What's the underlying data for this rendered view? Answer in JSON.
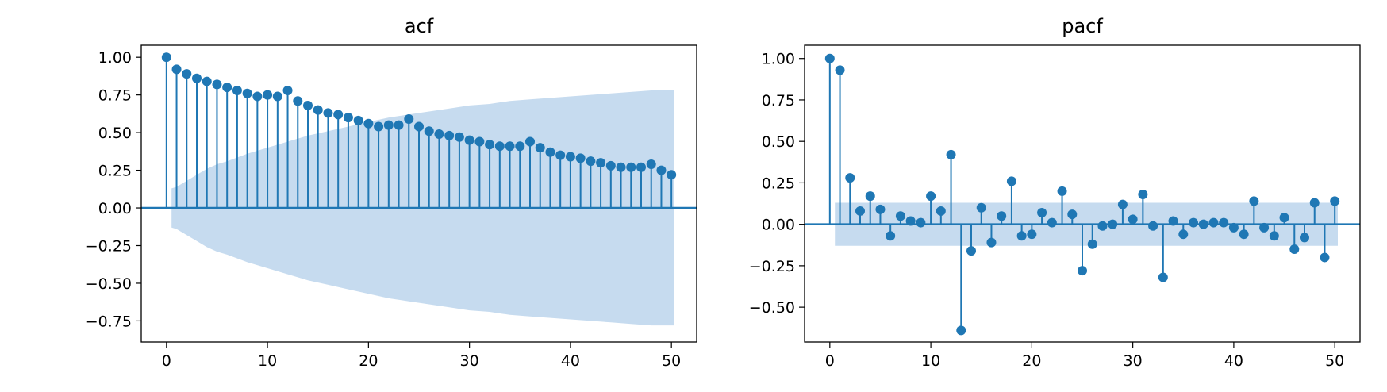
{
  "chart_data": [
    {
      "type": "stem",
      "title": "acf",
      "xlim": [
        -2.5,
        52.5
      ],
      "ylim": [
        -0.89,
        1.08
      ],
      "xticks": [
        0,
        10,
        20,
        30,
        40,
        50
      ],
      "yticks": [
        1.0,
        0.75,
        0.5,
        0.25,
        0.0,
        -0.25,
        -0.5,
        -0.75
      ],
      "ytick_labels": [
        "1.00",
        "0.75",
        "0.50",
        "0.25",
        "0.00",
        "−0.25",
        "−0.50",
        "−0.75"
      ],
      "lags": [
        0,
        1,
        2,
        3,
        4,
        5,
        6,
        7,
        8,
        9,
        10,
        11,
        12,
        13,
        14,
        15,
        16,
        17,
        18,
        19,
        20,
        21,
        22,
        23,
        24,
        25,
        26,
        27,
        28,
        29,
        30,
        31,
        32,
        33,
        34,
        35,
        36,
        37,
        38,
        39,
        40,
        41,
        42,
        43,
        44,
        45,
        46,
        47,
        48,
        49,
        50
      ],
      "values": [
        1.0,
        0.92,
        0.89,
        0.86,
        0.84,
        0.82,
        0.8,
        0.78,
        0.76,
        0.74,
        0.75,
        0.74,
        0.78,
        0.71,
        0.68,
        0.65,
        0.63,
        0.62,
        0.6,
        0.58,
        0.56,
        0.54,
        0.55,
        0.55,
        0.59,
        0.54,
        0.51,
        0.49,
        0.48,
        0.47,
        0.45,
        0.44,
        0.42,
        0.41,
        0.41,
        0.41,
        0.44,
        0.4,
        0.37,
        0.35,
        0.34,
        0.33,
        0.31,
        0.3,
        0.28,
        0.27,
        0.27,
        0.27,
        0.29,
        0.25,
        0.22
      ],
      "confint": {
        "lags": [
          0.5,
          1,
          2,
          3,
          4,
          5,
          6,
          8,
          10,
          12,
          14,
          16,
          18,
          20,
          22,
          24,
          26,
          28,
          30,
          32,
          34,
          36,
          38,
          40,
          42,
          44,
          46,
          48,
          50.3
        ],
        "half_width": [
          0.13,
          0.14,
          0.18,
          0.22,
          0.26,
          0.29,
          0.31,
          0.36,
          0.4,
          0.44,
          0.48,
          0.51,
          0.54,
          0.57,
          0.6,
          0.62,
          0.64,
          0.66,
          0.68,
          0.69,
          0.71,
          0.72,
          0.73,
          0.74,
          0.75,
          0.76,
          0.77,
          0.78,
          0.78
        ]
      },
      "colors": {
        "stem": "#1f77b4",
        "band": "#c6dbef"
      }
    },
    {
      "type": "stem",
      "title": "pacf",
      "xlim": [
        -2.5,
        52.5
      ],
      "ylim": [
        -0.71,
        1.08
      ],
      "xticks": [
        0,
        10,
        20,
        30,
        40,
        50
      ],
      "yticks": [
        1.0,
        0.75,
        0.5,
        0.25,
        0.0,
        -0.25,
        -0.5
      ],
      "ytick_labels": [
        "1.00",
        "0.75",
        "0.50",
        "0.25",
        "0.00",
        "−0.25",
        "−0.50"
      ],
      "lags": [
        0,
        1,
        2,
        3,
        4,
        5,
        6,
        7,
        8,
        9,
        10,
        11,
        12,
        13,
        14,
        15,
        16,
        17,
        18,
        19,
        20,
        21,
        22,
        23,
        24,
        25,
        26,
        27,
        28,
        29,
        30,
        31,
        32,
        33,
        34,
        35,
        36,
        37,
        38,
        39,
        40,
        41,
        42,
        43,
        44,
        45,
        46,
        47,
        48,
        49,
        50
      ],
      "values": [
        1.0,
        0.93,
        0.28,
        0.08,
        0.17,
        0.09,
        -0.07,
        0.05,
        0.02,
        0.01,
        0.17,
        0.08,
        0.42,
        -0.64,
        -0.16,
        0.1,
        -0.11,
        0.05,
        0.26,
        -0.07,
        -0.06,
        0.07,
        0.01,
        0.2,
        0.06,
        -0.28,
        -0.12,
        -0.01,
        0.0,
        0.12,
        0.03,
        0.18,
        -0.01,
        -0.32,
        0.02,
        -0.06,
        0.01,
        0.0,
        0.01,
        0.01,
        -0.02,
        -0.06,
        0.14,
        -0.02,
        -0.07,
        0.04,
        -0.15,
        -0.08,
        0.13,
        -0.2,
        0.14
      ],
      "confint": {
        "lags": [
          0.5,
          50.3
        ],
        "half_width": [
          0.13,
          0.13
        ]
      },
      "colors": {
        "stem": "#1f77b4",
        "band": "#c6dbef"
      }
    }
  ]
}
